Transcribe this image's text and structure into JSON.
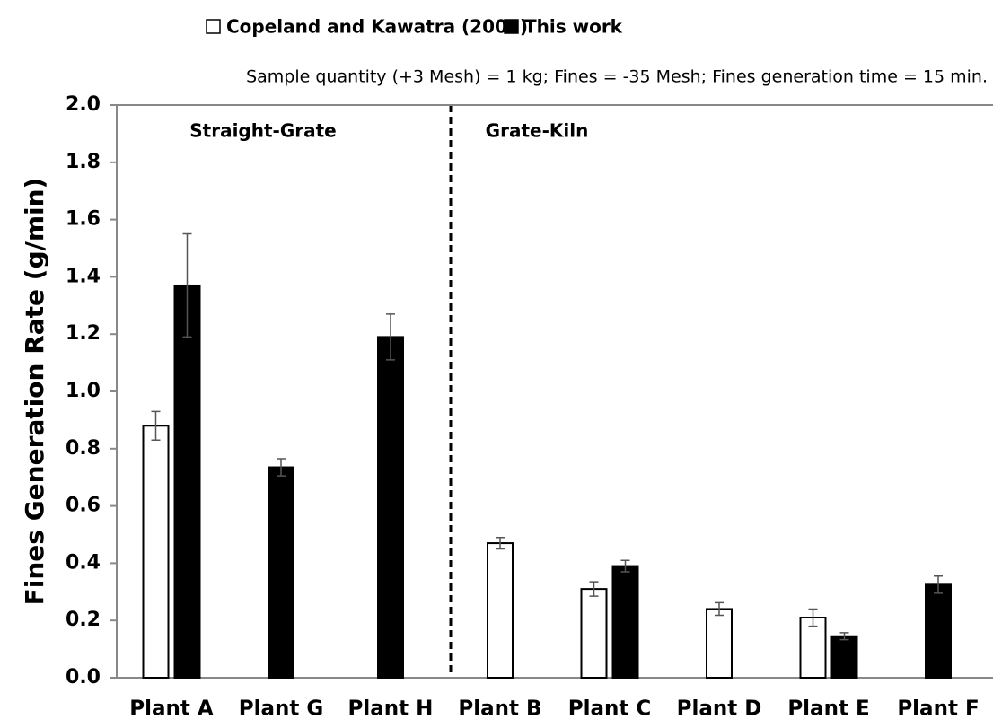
{
  "chart_data": {
    "type": "bar",
    "note": "Sample quantity (+3 Mesh) = 1 kg; Fines = -35 Mesh; Fines generation time = 15 min.",
    "y_label": "Fines Generation Rate (g/min)",
    "annotations": [
      "Straight-Grate",
      "Grate-Kiln"
    ],
    "categories": [
      "Plant A",
      "Plant G",
      "Plant H",
      "Plant B",
      "Plant C",
      "Plant D",
      "Plant E",
      "Plant F"
    ],
    "series": [
      {
        "name": "Copeland and Kawatra (2005)",
        "color": "#ffffff",
        "values": [
          0.88,
          null,
          null,
          0.47,
          0.31,
          0.24,
          0.21,
          null
        ],
        "errors": [
          0.05,
          null,
          null,
          0.02,
          0.025,
          0.022,
          0.03,
          null
        ]
      },
      {
        "name": "This work",
        "color": "#000000",
        "values": [
          1.37,
          0.735,
          1.19,
          null,
          0.39,
          null,
          0.145,
          0.325
        ],
        "errors": [
          0.18,
          0.03,
          0.08,
          null,
          0.02,
          null,
          0.012,
          0.03
        ]
      }
    ],
    "ylim": [
      0,
      2.0
    ],
    "yticks": [
      {
        "value": 0,
        "label": "0.0"
      },
      0.2,
      0.4,
      0.6,
      0.8,
      {
        "value": 1,
        "label": "1.0"
      },
      1.2,
      1.4,
      1.6,
      1.8,
      {
        "value": 2,
        "label": "2.0"
      }
    ],
    "grid": false
  }
}
